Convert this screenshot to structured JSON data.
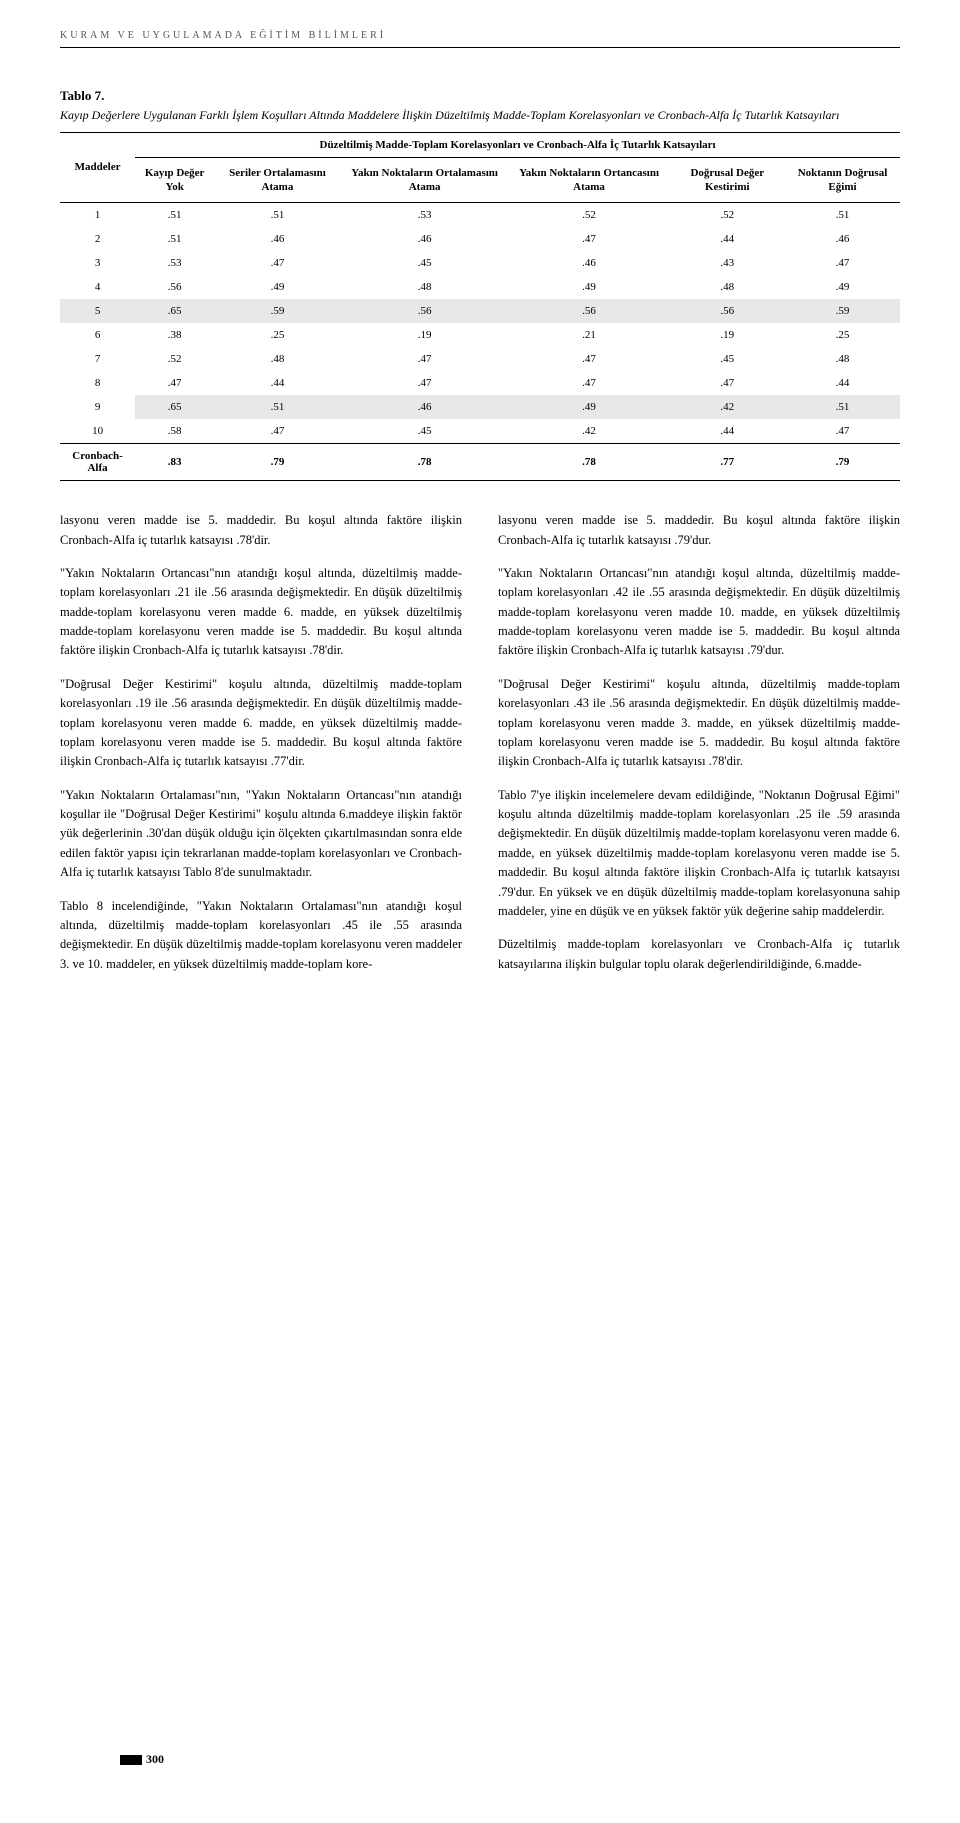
{
  "runningHead": "KURAM VE UYGULAMADA EĞİTİM BİLİMLERİ",
  "table": {
    "label": "Tablo 7.",
    "caption": "Kayıp Değerlere Uygulanan Farklı İşlem Koşulları Altında Maddelere İlişkin Düzeltilmiş Madde-Toplam Korelasyonları ve Cronbach-Alfa İç Tutarlık Katsayıları",
    "spanHeader": "Düzeltilmiş Madde-Toplam Korelasyonları ve Cronbach-Alfa İç Tutarlık Katsayıları",
    "rowHeader": "Maddeler",
    "columns": [
      "Kayıp Değer Yok",
      "Seriler Ortalamasını Atama",
      "Yakın Noktaların Ortalamasını Atama",
      "Yakın Noktaların Ortancasını Atama",
      "Doğrusal Değer Kestirimi",
      "Noktanın Doğrusal Eğimi"
    ],
    "rows": [
      {
        "label": "1",
        "vals": [
          ".51",
          ".51",
          ".53",
          ".52",
          ".52",
          ".51"
        ],
        "hl": false
      },
      {
        "label": "2",
        "vals": [
          ".51",
          ".46",
          ".46",
          ".47",
          ".44",
          ".46"
        ],
        "hl": false
      },
      {
        "label": "3",
        "vals": [
          ".53",
          ".47",
          ".45",
          ".46",
          ".43",
          ".47"
        ],
        "hl": false
      },
      {
        "label": "4",
        "vals": [
          ".56",
          ".49",
          ".48",
          ".49",
          ".48",
          ".49"
        ],
        "hl": false
      },
      {
        "label": "5",
        "vals": [
          ".65",
          ".59",
          ".56",
          ".56",
          ".56",
          ".59"
        ],
        "hl": true
      },
      {
        "label": "6",
        "vals": [
          ".38",
          ".25",
          ".19",
          ".21",
          ".19",
          ".25"
        ],
        "hl": false
      },
      {
        "label": "7",
        "vals": [
          ".52",
          ".48",
          ".47",
          ".47",
          ".45",
          ".48"
        ],
        "hl": false
      },
      {
        "label": "8",
        "vals": [
          ".47",
          ".44",
          ".47",
          ".47",
          ".47",
          ".44"
        ],
        "hl": false
      },
      {
        "label": "9",
        "vals": [
          ".65",
          ".51",
          ".46",
          ".49",
          ".42",
          ".51"
        ],
        "hl": true,
        "firstNoHl": true
      },
      {
        "label": "10",
        "vals": [
          ".58",
          ".47",
          ".45",
          ".42",
          ".44",
          ".47"
        ],
        "hl": false
      }
    ],
    "cronRow": {
      "label": "Cronbach-Alfa",
      "vals": [
        ".83",
        ".79",
        ".78",
        ".78",
        ".77",
        ".79"
      ]
    }
  },
  "leftCol": [
    "lasyonu veren madde ise 5. maddedir. Bu koşul altında faktöre ilişkin Cronbach-Alfa iç tutarlık katsayısı .78'dir.",
    "\"Yakın Noktaların Ortancası\"nın atandığı koşul altında, düzeltilmiş madde-toplam korelasyonları .21 ile .56 arasında değişmektedir. En düşük düzeltilmiş madde-toplam korelasyonu veren madde 6. madde, en yüksek düzeltilmiş madde-toplam korelasyonu veren madde ise 5. maddedir. Bu koşul altında faktöre ilişkin Cronbach-Alfa iç tutarlık katsayısı .78'dir.",
    "\"Doğrusal Değer Kestirimi\" koşulu altında, düzeltilmiş madde-toplam korelasyonları .19 ile .56 arasında değişmektedir. En düşük düzeltilmiş madde-toplam korelasyonu veren madde 6. madde, en yüksek düzeltilmiş madde-toplam korelasyonu veren madde ise 5. maddedir. Bu koşul altında faktöre ilişkin Cronbach-Alfa iç tutarlık katsayısı .77'dir.",
    "\"Yakın Noktaların Ortalaması\"nın, \"Yakın Noktaların Ortancası\"nın atandığı koşullar ile \"Doğrusal Değer Kestirimi\" koşulu altında 6.maddeye ilişkin faktör yük değerlerinin .30'dan düşük olduğu için ölçekten çıkartılmasından sonra elde edilen faktör yapısı için tekrarlanan madde-toplam korelasyonları ve Cronbach-Alfa iç tutarlık katsayısı Tablo 8'de sunulmaktadır.",
    "Tablo 8 incelendiğinde, \"Yakın Noktaların Ortalaması\"nın atandığı koşul altında, düzeltilmiş madde-toplam korelasyonları .45 ile .55 arasında değişmektedir. En düşük düzeltilmiş madde-toplam korelasyonu veren maddeler 3. ve 10. maddeler, en yüksek düzeltilmiş madde-toplam kore-"
  ],
  "rightCol": [
    "lasyonu veren madde ise 5. maddedir. Bu koşul altında faktöre ilişkin Cronbach-Alfa iç tutarlık katsayısı .79'dur.",
    "\"Yakın Noktaların Ortancası\"nın atandığı koşul altında, düzeltilmiş madde-toplam korelasyonları .42 ile .55 arasında değişmektedir. En düşük düzeltilmiş madde-toplam korelasyonu veren madde 10. madde, en yüksek düzeltilmiş madde-toplam korelasyonu veren madde ise 5. maddedir. Bu koşul altında faktöre ilişkin Cronbach-Alfa iç tutarlık katsayısı .79'dur.",
    "\"Doğrusal Değer Kestirimi\" koşulu altında, düzeltilmiş madde-toplam korelasyonları .43 ile .56 arasında değişmektedir. En düşük düzeltilmiş madde-toplam korelasyonu veren madde 3. madde, en yüksek düzeltilmiş madde-toplam korelasyonu veren madde ise 5. maddedir. Bu koşul altında faktöre ilişkin Cronbach-Alfa iç tutarlık katsayısı .78'dir.",
    "Tablo 7'ye ilişkin incelemelere devam edildiğinde, \"Noktanın Doğrusal Eğimi\" koşulu altında düzeltilmiş madde-toplam korelasyonları .25 ile .59 arasında değişmektedir. En düşük düzeltilmiş madde-toplam korelasyonu veren madde 6. madde, en yüksek düzeltilmiş madde-toplam korelasyonu veren madde ise 5. maddedir. Bu koşul altında faktöre ilişkin Cronbach-Alfa iç tutarlık katsayısı .79'dur. En yüksek ve en düşük düzeltilmiş madde-toplam korelasyonuna sahip maddeler, yine en düşük ve en yüksek faktör yük değerine sahip maddelerdir.",
    "Düzeltilmiş madde-toplam korelasyonları ve Cronbach-Alfa iç tutarlık katsayılarına ilişkin bulgular toplu olarak değerlendirildiğinde, 6.madde-"
  ],
  "pageNumber": "300",
  "style": {
    "pageWidth": 960,
    "pageHeight": 1753,
    "bodyFont": "Georgia / Times",
    "bodyFontSize": 12.5,
    "tableFontSize": 11,
    "headingLetterSpacing": 3,
    "highlightColor": "#e8e8e8",
    "ruleColor": "#000000",
    "textColor": "#000000",
    "background": "#ffffff"
  }
}
